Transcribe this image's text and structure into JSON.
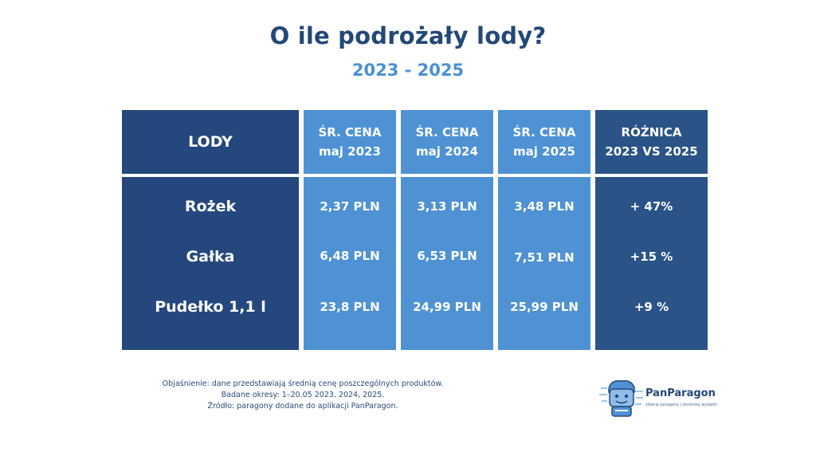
{
  "title": "O ile podrożały lody?",
  "subtitle": "2023 - 2025",
  "chart_data": {
    "type": "table",
    "columns": [
      {
        "line1": "LODY",
        "line2": ""
      },
      {
        "line1": "ŚR. CENA",
        "line2": "maj 2023"
      },
      {
        "line1": "ŚR. CENA",
        "line2": "maj 2024"
      },
      {
        "line1": "ŚR. CENA",
        "line2": "maj 2025"
      },
      {
        "line1": "RÓŻNICA",
        "line2": "2023 VS 2025"
      }
    ],
    "rows": [
      {
        "name": "Rożek",
        "cells": [
          "2,37 PLN",
          "3,13 PLN",
          "3,48 PLN",
          "+ 47%"
        ]
      },
      {
        "name": "Gałka",
        "cells": [
          "6,48 PLN",
          "6,53 PLN",
          "7,51 PLN",
          "+15 %"
        ]
      },
      {
        "name": "Pudełko 1,1 l",
        "cells": [
          "23,8 PLN",
          "24,99 PLN",
          "25,99 PLN",
          "+9 %"
        ]
      }
    ]
  },
  "notes": {
    "line1": "Objaśnienie: dane przedstawiają średnią cenę poszczególnych produktów.",
    "line2": "Badane okresy:  1–20.05 2023, 2024, 2025.",
    "line3": "Źródło: paragony dodane do aplikacji PanParagon."
  },
  "logo": {
    "brand": "PanParagon",
    "tagline": "zbieraj paragony | kontroluj wydatki",
    "icon": "panparagon-mascot-icon"
  },
  "colors": {
    "title": "#234878",
    "subtitle": "#4a90d6",
    "dark_column": "#24477d",
    "price_column": "#4e92d3",
    "diff_column": "#2a5387"
  }
}
